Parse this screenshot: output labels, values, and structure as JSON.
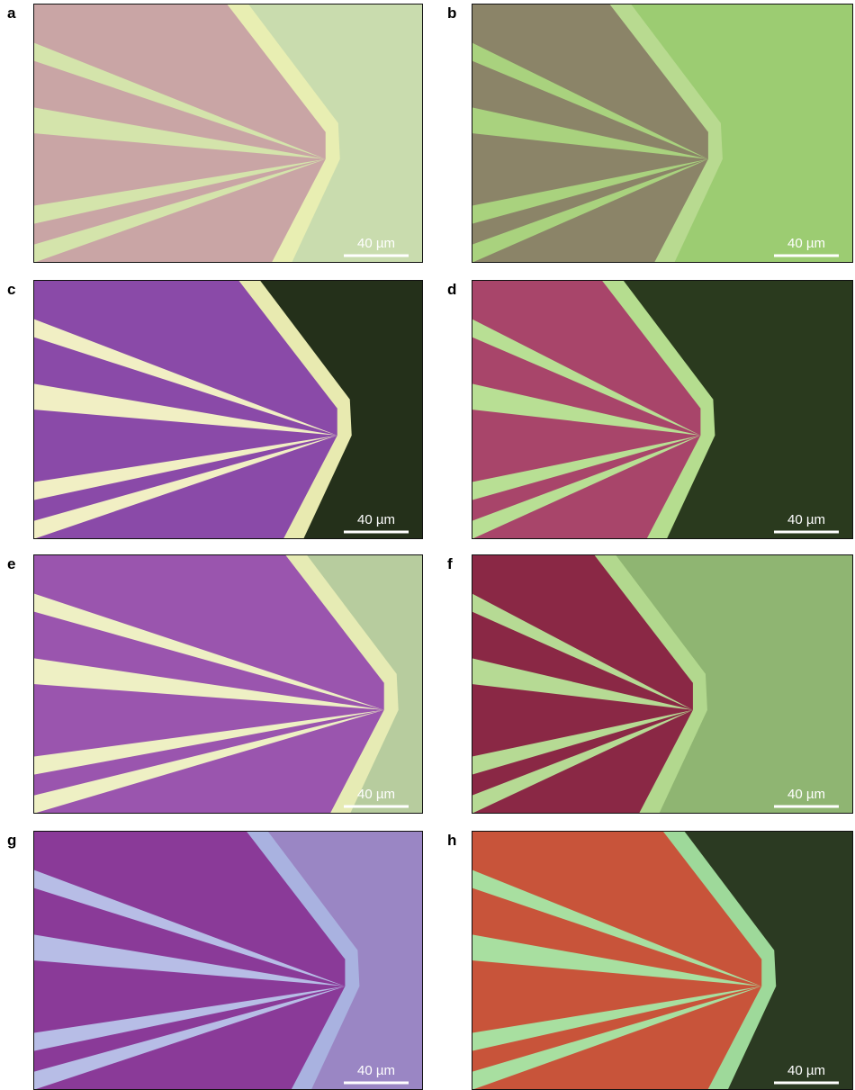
{
  "panels": [
    {
      "label": "a",
      "scale_bar": "40 µm"
    },
    {
      "label": "b",
      "scale_bar": "40 µm"
    },
    {
      "label": "c",
      "scale_bar": "40 µm"
    },
    {
      "label": "d",
      "scale_bar": "40 µm"
    },
    {
      "label": "e",
      "scale_bar": "40 µm"
    },
    {
      "label": "f",
      "scale_bar": "40 µm"
    },
    {
      "label": "g",
      "scale_bar": "40 µm"
    },
    {
      "label": "h",
      "scale_bar": "40 µm"
    }
  ]
}
